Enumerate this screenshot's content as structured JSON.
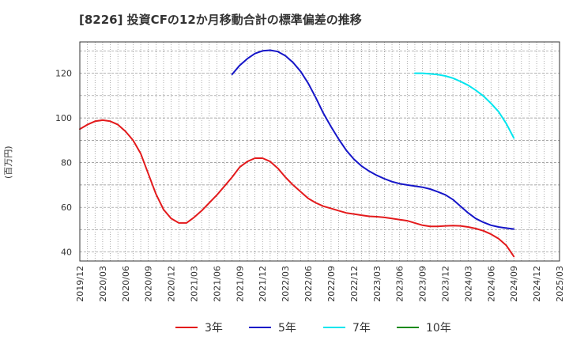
{
  "chart_data": {
    "type": "line",
    "title": "[8226]  投資CFの12か月移動合計の標準偏差の推移",
    "ylabel": "(百万円)",
    "ylim": [
      36,
      134
    ],
    "yticks": [
      "40",
      "60",
      "80",
      "100",
      "120"
    ],
    "xticks": [
      "2019/12",
      "2020/03",
      "2020/06",
      "2020/09",
      "2020/12",
      "2021/03",
      "2021/06",
      "2021/09",
      "2021/12",
      "2022/03",
      "2022/06",
      "2022/09",
      "2022/12",
      "2023/03",
      "2023/06",
      "2023/09",
      "2023/12",
      "2024/03",
      "2024/06",
      "2024/09",
      "2024/12",
      "2025/03"
    ],
    "grid": true,
    "legend_position": "bottom",
    "series": [
      {
        "name": "3年",
        "color": "#e31a1c",
        "x": [
          "2019/12",
          "2020/01",
          "2020/02",
          "2020/03",
          "2020/04",
          "2020/05",
          "2020/06",
          "2020/07",
          "2020/08",
          "2020/09",
          "2020/10",
          "2020/11",
          "2020/12",
          "2021/01",
          "2021/02",
          "2021/03",
          "2021/04",
          "2021/05",
          "2021/06",
          "2021/07",
          "2021/08",
          "2021/09",
          "2021/10",
          "2021/11",
          "2021/12",
          "2022/01",
          "2022/02",
          "2022/03",
          "2022/04",
          "2022/05",
          "2022/06",
          "2022/07",
          "2022/08",
          "2022/09",
          "2022/10",
          "2022/11",
          "2022/12",
          "2023/01",
          "2023/02",
          "2023/03",
          "2023/04",
          "2023/05",
          "2023/06",
          "2023/07",
          "2023/08",
          "2023/09",
          "2023/10",
          "2023/11",
          "2023/12",
          "2024/01",
          "2024/02",
          "2024/03",
          "2024/04",
          "2024/05",
          "2024/06",
          "2024/07",
          "2024/08",
          "2024/09"
        ],
        "values": [
          95,
          97,
          98.5,
          99,
          98.5,
          97,
          94,
          90,
          84,
          75,
          66,
          59,
          55,
          53,
          53,
          55.5,
          58.5,
          62,
          65.5,
          69.5,
          73.5,
          78,
          80.5,
          82,
          82,
          80.5,
          77.5,
          73.5,
          70,
          67,
          64,
          62,
          60.5,
          59.5,
          58.5,
          57.5,
          57,
          56.5,
          56,
          55.8,
          55.5,
          55,
          54.5,
          54,
          53,
          52,
          51.5,
          51.5,
          51.7,
          51.8,
          51.7,
          51.2,
          50.5,
          49.5,
          48,
          46,
          43,
          38
        ]
      },
      {
        "name": "5年",
        "color": "#1515c8",
        "x": [
          "2021/08",
          "2021/09",
          "2021/10",
          "2021/11",
          "2021/12",
          "2022/01",
          "2022/02",
          "2022/03",
          "2022/04",
          "2022/05",
          "2022/06",
          "2022/07",
          "2022/08",
          "2022/09",
          "2022/10",
          "2022/11",
          "2022/12",
          "2023/01",
          "2023/02",
          "2023/03",
          "2023/04",
          "2023/05",
          "2023/06",
          "2023/07",
          "2023/08",
          "2023/09",
          "2023/10",
          "2023/11",
          "2023/12",
          "2024/01",
          "2024/02",
          "2024/03",
          "2024/04",
          "2024/05",
          "2024/06",
          "2024/07",
          "2024/08",
          "2024/09"
        ],
        "values": [
          119.5,
          123.5,
          126.5,
          128.8,
          130,
          130.3,
          129.7,
          127.8,
          124.8,
          120.8,
          115.5,
          109,
          102,
          96,
          90.5,
          85.5,
          81.5,
          78.5,
          76.2,
          74.3,
          72.8,
          71.5,
          70.6,
          70,
          69.5,
          69,
          68.2,
          67,
          65.6,
          63.5,
          60.5,
          57.5,
          55,
          53.3,
          52,
          51.2,
          50.7,
          50.3
        ]
      },
      {
        "name": "7年",
        "color": "#00e5ee",
        "x": [
          "2023/08",
          "2023/09",
          "2023/10",
          "2023/11",
          "2023/12",
          "2024/01",
          "2024/02",
          "2024/03",
          "2024/04",
          "2024/05",
          "2024/06",
          "2024/07",
          "2024/08",
          "2024/09"
        ],
        "values": [
          120,
          120,
          119.7,
          119.4,
          118.8,
          117.8,
          116.3,
          114.6,
          112.4,
          109.8,
          106.5,
          102.8,
          97.5,
          91
        ]
      },
      {
        "name": "10年",
        "color": "#1a8a1a",
        "x": [],
        "values": []
      }
    ]
  }
}
